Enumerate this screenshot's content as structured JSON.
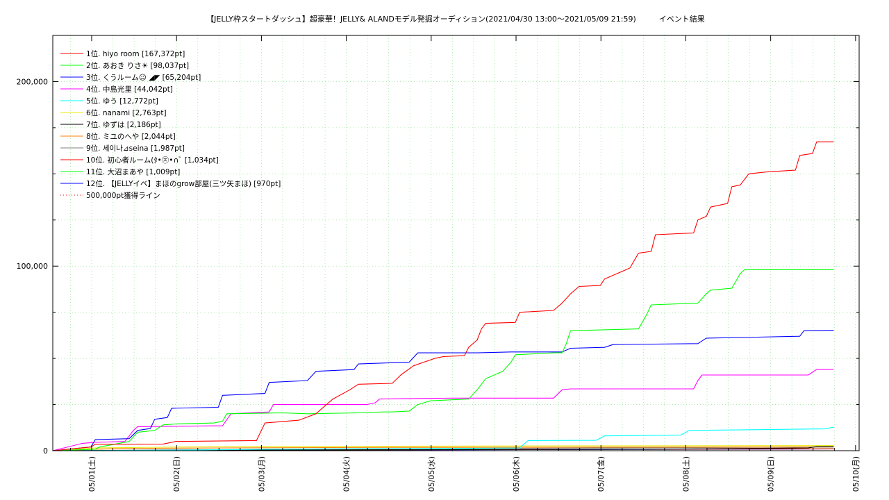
{
  "chart_data": {
    "type": "line",
    "title": "【JELLY枠スタートダッシュ】超豪華！JELLY& ALANDモデル発掘オーディション(2021/04/30 13:00〜2021/05/09 21:59)　　　イベント結果",
    "xlabel": "",
    "ylabel": "",
    "x_unit": "days since 2021/04/30 13:00",
    "xlim": [
      0,
      9.5
    ],
    "ylim": [
      0,
      225000
    ],
    "grid": true,
    "legend_position": "top-left",
    "y_ticks": [
      {
        "value": 0,
        "label": "0"
      },
      {
        "value": 100000,
        "label": "100,000"
      },
      {
        "value": 200000,
        "label": "200,000"
      }
    ],
    "x_ticks": [
      {
        "value": 0.458,
        "label": "05/01(土)"
      },
      {
        "value": 1.458,
        "label": "05/02(日)"
      },
      {
        "value": 2.458,
        "label": "05/03(月)"
      },
      {
        "value": 3.458,
        "label": "05/04(火)"
      },
      {
        "value": 4.458,
        "label": "05/05(水)"
      },
      {
        "value": 5.458,
        "label": "05/06(木)"
      },
      {
        "value": 6.458,
        "label": "05/07(金)"
      },
      {
        "value": 7.458,
        "label": "05/08(土)"
      },
      {
        "value": 8.458,
        "label": "05/09(日)"
      },
      {
        "value": 9.458,
        "label": "05/10(月)"
      }
    ],
    "series": [
      {
        "name": "1位. hiyo room [167,372pt]",
        "color": "#ff0000",
        "style": "solid",
        "points": [
          [
            0,
            0
          ],
          [
            0.45,
            2000
          ],
          [
            0.5,
            3500
          ],
          [
            1.3,
            3600
          ],
          [
            1.45,
            5000
          ],
          [
            2.4,
            5500
          ],
          [
            2.5,
            15000
          ],
          [
            2.9,
            16500
          ],
          [
            3.1,
            20000
          ],
          [
            3.3,
            28000
          ],
          [
            3.5,
            33000
          ],
          [
            3.6,
            36000
          ],
          [
            4.0,
            36500
          ],
          [
            4.1,
            41000
          ],
          [
            4.25,
            46000
          ],
          [
            4.5,
            50000
          ],
          [
            4.6,
            51000
          ],
          [
            4.85,
            51500
          ],
          [
            4.9,
            56000
          ],
          [
            5.0,
            60000
          ],
          [
            5.05,
            66000
          ],
          [
            5.1,
            69000
          ],
          [
            5.45,
            69500
          ],
          [
            5.5,
            75000
          ],
          [
            5.9,
            76000
          ],
          [
            6.0,
            80000
          ],
          [
            6.1,
            85000
          ],
          [
            6.2,
            89000
          ],
          [
            6.45,
            89500
          ],
          [
            6.5,
            93000
          ],
          [
            6.65,
            96000
          ],
          [
            6.8,
            99000
          ],
          [
            6.9,
            107000
          ],
          [
            7.05,
            108000
          ],
          [
            7.1,
            117000
          ],
          [
            7.55,
            118000
          ],
          [
            7.6,
            125000
          ],
          [
            7.7,
            127000
          ],
          [
            7.75,
            132000
          ],
          [
            7.95,
            134000
          ],
          [
            8.0,
            143000
          ],
          [
            8.1,
            144000
          ],
          [
            8.2,
            150000
          ],
          [
            8.4,
            151000
          ],
          [
            8.75,
            152000
          ],
          [
            8.8,
            160000
          ],
          [
            8.95,
            161000
          ],
          [
            9.0,
            167372
          ],
          [
            9.2,
            167372
          ]
        ]
      },
      {
        "name": "2位. あおき りさ☀ [98,037pt]",
        "color": "#00ff00",
        "style": "solid",
        "points": [
          [
            0,
            0
          ],
          [
            0.5,
            800
          ],
          [
            0.55,
            2000
          ],
          [
            0.9,
            5000
          ],
          [
            1.0,
            10000
          ],
          [
            1.2,
            11000
          ],
          [
            1.3,
            14000
          ],
          [
            1.45,
            14500
          ],
          [
            1.9,
            15000
          ],
          [
            2.0,
            16000
          ],
          [
            2.05,
            20000
          ],
          [
            2.7,
            20500
          ],
          [
            3.0,
            20000
          ],
          [
            3.6,
            20500
          ],
          [
            3.9,
            21000
          ],
          [
            4.0,
            21000
          ],
          [
            4.2,
            21500
          ],
          [
            4.3,
            25000
          ],
          [
            4.45,
            27000
          ],
          [
            4.9,
            28000
          ],
          [
            5.0,
            33000
          ],
          [
            5.1,
            39000
          ],
          [
            5.3,
            43000
          ],
          [
            5.4,
            48000
          ],
          [
            5.45,
            52000
          ],
          [
            5.9,
            53000
          ],
          [
            6.0,
            53000
          ],
          [
            6.05,
            58000
          ],
          [
            6.1,
            65000
          ],
          [
            6.5,
            65500
          ],
          [
            6.9,
            66000
          ],
          [
            7.0,
            74000
          ],
          [
            7.05,
            79000
          ],
          [
            7.6,
            80000
          ],
          [
            7.7,
            85000
          ],
          [
            7.75,
            87000
          ],
          [
            8.0,
            88000
          ],
          [
            8.1,
            96000
          ],
          [
            8.15,
            98037
          ],
          [
            9.2,
            98037
          ]
        ]
      },
      {
        "name": "3位. くうルーム☺ ◢◤ [65,204pt]",
        "color": "#0000ff",
        "style": "solid",
        "points": [
          [
            0,
            0
          ],
          [
            0.45,
            2000
          ],
          [
            0.5,
            6000
          ],
          [
            0.9,
            6500
          ],
          [
            1.0,
            11000
          ],
          [
            1.15,
            12000
          ],
          [
            1.2,
            17000
          ],
          [
            1.35,
            18000
          ],
          [
            1.4,
            23000
          ],
          [
            1.95,
            23500
          ],
          [
            2.0,
            30000
          ],
          [
            2.5,
            31000
          ],
          [
            2.55,
            37000
          ],
          [
            3.0,
            38000
          ],
          [
            3.1,
            43000
          ],
          [
            3.55,
            44000
          ],
          [
            3.6,
            47000
          ],
          [
            4.2,
            48000
          ],
          [
            4.3,
            53000
          ],
          [
            5.0,
            53000
          ],
          [
            5.4,
            53500
          ],
          [
            6.0,
            53500
          ],
          [
            6.1,
            55500
          ],
          [
            6.5,
            56000
          ],
          [
            6.6,
            57500
          ],
          [
            7.6,
            58000
          ],
          [
            7.7,
            61000
          ],
          [
            8.3,
            61500
          ],
          [
            8.8,
            62000
          ],
          [
            8.85,
            65000
          ],
          [
            9.2,
            65204
          ]
        ]
      },
      {
        "name": "4位. 中島光里 [44,042pt]",
        "color": "#ff00ff",
        "style": "solid",
        "points": [
          [
            0,
            0
          ],
          [
            0.35,
            4000
          ],
          [
            0.5,
            4500
          ],
          [
            0.85,
            5000
          ],
          [
            0.95,
            11000
          ],
          [
            1.0,
            13000
          ],
          [
            2.0,
            13500
          ],
          [
            2.1,
            20000
          ],
          [
            2.55,
            21000
          ],
          [
            2.6,
            25000
          ],
          [
            3.7,
            25000
          ],
          [
            3.8,
            26000
          ],
          [
            3.85,
            28000
          ],
          [
            4.7,
            28500
          ],
          [
            5.9,
            28500
          ],
          [
            6.0,
            33000
          ],
          [
            6.1,
            33500
          ],
          [
            7.55,
            33500
          ],
          [
            7.6,
            38000
          ],
          [
            7.65,
            41000
          ],
          [
            8.2,
            41000
          ],
          [
            8.9,
            41000
          ],
          [
            9.0,
            44042
          ],
          [
            9.2,
            44042
          ]
        ]
      },
      {
        "name": "5位. ゆう [12,772pt]",
        "color": "#00ffff",
        "style": "solid",
        "points": [
          [
            0,
            0
          ],
          [
            1.5,
            300
          ],
          [
            2.5,
            800
          ],
          [
            3.5,
            1000
          ],
          [
            4.5,
            1200
          ],
          [
            5.5,
            1500
          ],
          [
            5.6,
            5500
          ],
          [
            6.4,
            5600
          ],
          [
            6.5,
            8000
          ],
          [
            7.4,
            8500
          ],
          [
            7.5,
            11000
          ],
          [
            8.5,
            11500
          ],
          [
            9.1,
            11800
          ],
          [
            9.2,
            12772
          ]
        ]
      },
      {
        "name": "6位. nanami [2,763pt]",
        "color": "#e8e800",
        "style": "solid",
        "points": [
          [
            0,
            0
          ],
          [
            0.5,
            1500
          ],
          [
            1.5,
            2000
          ],
          [
            2.5,
            2300
          ],
          [
            4.5,
            2500
          ],
          [
            6.5,
            2600
          ],
          [
            9.2,
            2763
          ]
        ]
      },
      {
        "name": "7位. ゆずは [2,186pt]",
        "color": "#000000",
        "style": "solid",
        "points": [
          [
            0,
            0
          ],
          [
            1.0,
            200
          ],
          [
            3.0,
            400
          ],
          [
            5.0,
            600
          ],
          [
            7.0,
            800
          ],
          [
            8.9,
            1500
          ],
          [
            9.0,
            2186
          ],
          [
            9.2,
            2186
          ]
        ]
      },
      {
        "name": "8位. ミユのへや [2,044pt]",
        "color": "#ff7f00",
        "style": "solid",
        "points": [
          [
            0,
            0
          ],
          [
            0.8,
            1200
          ],
          [
            2.0,
            1500
          ],
          [
            4.0,
            1800
          ],
          [
            6.0,
            1900
          ],
          [
            9.2,
            2044
          ]
        ]
      },
      {
        "name": "9位. 세이나⊿seina [1,987pt]",
        "color": "#7f7f7f",
        "style": "solid",
        "points": [
          [
            0,
            0
          ],
          [
            1.5,
            500
          ],
          [
            3.5,
            900
          ],
          [
            5.5,
            1300
          ],
          [
            7.5,
            1700
          ],
          [
            9.2,
            1987
          ]
        ]
      },
      {
        "name": "10位. 初心者ルーム(ﾀ•㉨•∩ﾞ [1,034pt]",
        "color": "#ff0000",
        "style": "solid",
        "points": [
          [
            0,
            0
          ],
          [
            2.0,
            300
          ],
          [
            4.0,
            500
          ],
          [
            6.0,
            700
          ],
          [
            8.0,
            900
          ],
          [
            9.2,
            1034
          ]
        ]
      },
      {
        "name": "11位. 大沼まあや [1,009pt]",
        "color": "#00ff00",
        "style": "solid",
        "points": [
          [
            0,
            0
          ],
          [
            2.5,
            300
          ],
          [
            4.5,
            600
          ],
          [
            6.5,
            800
          ],
          [
            9.2,
            1009
          ]
        ]
      },
      {
        "name": "12位. 【JELLYイベ】まほのgrow部屋(三ツ矢まほ) [970pt]",
        "color": "#0000ff",
        "style": "solid",
        "points": [
          [
            0,
            0
          ],
          [
            1.0,
            100
          ],
          [
            3.0,
            300
          ],
          [
            6.0,
            600
          ],
          [
            9.0,
            900
          ],
          [
            9.2,
            970
          ]
        ]
      },
      {
        "name": "500,000pt獲得ライン",
        "color": "#ff0000",
        "style": "dotted",
        "points": []
      }
    ]
  }
}
